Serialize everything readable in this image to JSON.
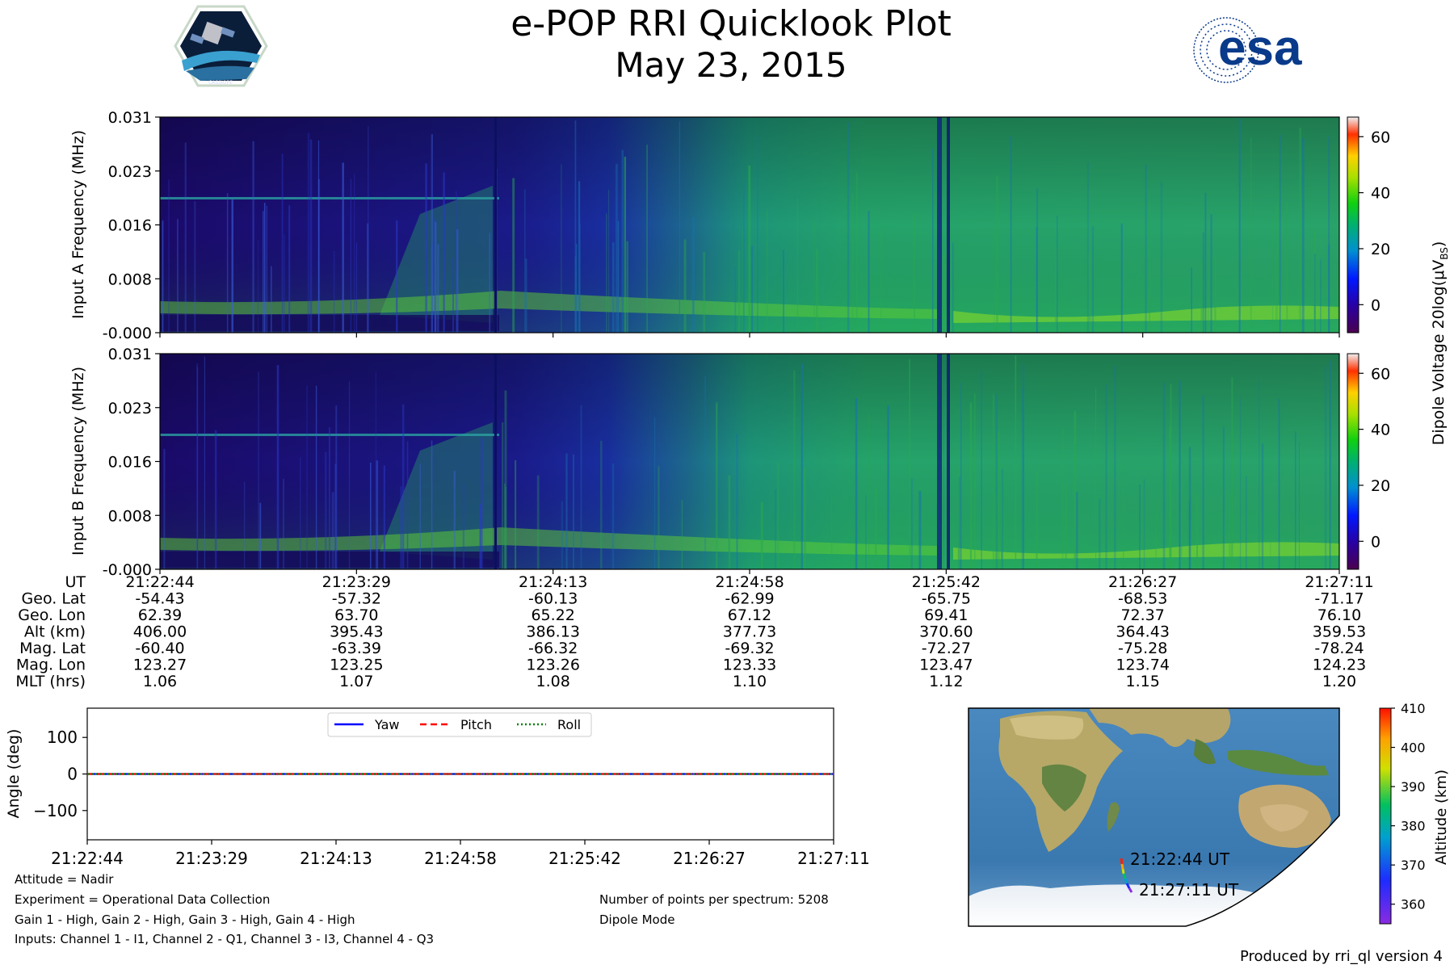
{
  "title": "e-POP RRI Quicklook Plot",
  "subtitle": "May 23, 2015",
  "logos": {
    "left": "CASSIOPE",
    "right": "esa"
  },
  "chart_data": [
    {
      "type": "heatmap",
      "name": "input-a-spectrogram",
      "ylabel": "Input A Frequency (MHz)",
      "ylim": [
        -0.0,
        0.031
      ],
      "yticks": [
        "-0.000",
        "0.008",
        "0.016",
        "0.023",
        "0.031"
      ]
    },
    {
      "type": "heatmap",
      "name": "input-b-spectrogram",
      "ylabel": "Input B Frequency (MHz)",
      "ylim": [
        -0.0,
        0.031
      ],
      "yticks": [
        "-0.000",
        "0.008",
        "0.016",
        "0.023",
        "0.031"
      ]
    },
    {
      "type": "colorbar",
      "name": "dipole-voltage-colorbar",
      "label": "Dipole Voltage 20log(μV",
      "label_sub": "BS",
      "label_close": ")",
      "range": [
        -10,
        67
      ],
      "ticks": [
        "0",
        "20",
        "40",
        "60"
      ],
      "tick_values": [
        0,
        20,
        40,
        60
      ]
    },
    {
      "type": "line",
      "name": "attitude-angles",
      "ylabel": "Angle (deg)",
      "ylim": [
        -180,
        180
      ],
      "yticks": [
        "−100",
        "0",
        "100"
      ],
      "ytick_values": [
        -100,
        0,
        100
      ],
      "xticks": [
        "21:22:44",
        "21:23:29",
        "21:24:13",
        "21:24:58",
        "21:25:42",
        "21:26:27",
        "21:27:11"
      ],
      "series": [
        {
          "name": "Yaw",
          "values": [
            0,
            0,
            0,
            0,
            0,
            0,
            0
          ],
          "color": "#0000ff",
          "style": "solid"
        },
        {
          "name": "Pitch",
          "values": [
            0,
            0,
            0,
            0,
            0,
            0,
            0
          ],
          "color": "#ff0000",
          "style": "dashed"
        },
        {
          "name": "Roll",
          "values": [
            0,
            0,
            0,
            0,
            0,
            0,
            0
          ],
          "color": "#008000",
          "style": "dotted"
        }
      ]
    },
    {
      "type": "colorbar",
      "name": "altitude-colorbar",
      "label": "Altitude (km)",
      "range": [
        355,
        410
      ],
      "ticks": [
        "360",
        "370",
        "380",
        "390",
        "400",
        "410"
      ],
      "tick_values": [
        360,
        370,
        380,
        390,
        400,
        410
      ]
    }
  ],
  "ephemeris": {
    "labels": [
      "UT",
      "Geo. Lat",
      "Geo. Lon",
      "Alt (km)",
      "Mag. Lat",
      "Mag. Lon",
      "MLT (hrs)"
    ],
    "columns": [
      [
        "21:22:44",
        "-54.43",
        "62.39",
        "406.00",
        "-60.40",
        "123.27",
        "1.06"
      ],
      [
        "21:23:29",
        "-57.32",
        "63.70",
        "395.43",
        "-63.39",
        "123.25",
        "1.07"
      ],
      [
        "21:24:13",
        "-60.13",
        "65.22",
        "386.13",
        "-66.32",
        "123.26",
        "1.08"
      ],
      [
        "21:24:58",
        "-62.99",
        "67.12",
        "377.73",
        "-69.32",
        "123.33",
        "1.10"
      ],
      [
        "21:25:42",
        "-65.75",
        "69.41",
        "370.60",
        "-72.27",
        "123.47",
        "1.12"
      ],
      [
        "21:26:27",
        "-68.53",
        "72.37",
        "364.43",
        "-75.28",
        "123.74",
        "1.15"
      ],
      [
        "21:27:11",
        "-71.17",
        "76.10",
        "359.53",
        "-78.24",
        "124.23",
        "1.20"
      ]
    ]
  },
  "map": {
    "start_label": "21:22:44 UT",
    "end_label": "21:27:11 UT"
  },
  "info": {
    "attitude": "Attitude = Nadir",
    "experiment": "Experiment = Operational Data Collection",
    "gains": "Gain 1 - High, Gain 2 - High, Gain 3 - High, Gain 4 - High",
    "inputs": "Inputs: Channel 1 - I1, Channel 2 - Q1, Channel 3 - I3, Channel 4 - Q3",
    "points": "Number of points per spectrum: 5208",
    "mode": "Dipole Mode",
    "produced_by": "Produced by rri_ql version 4"
  },
  "colors": {
    "yaw": "#0000ff",
    "pitch": "#ff0000",
    "roll": "#008000",
    "ocean": "#3e7fb8",
    "land": "#b8b27a"
  }
}
